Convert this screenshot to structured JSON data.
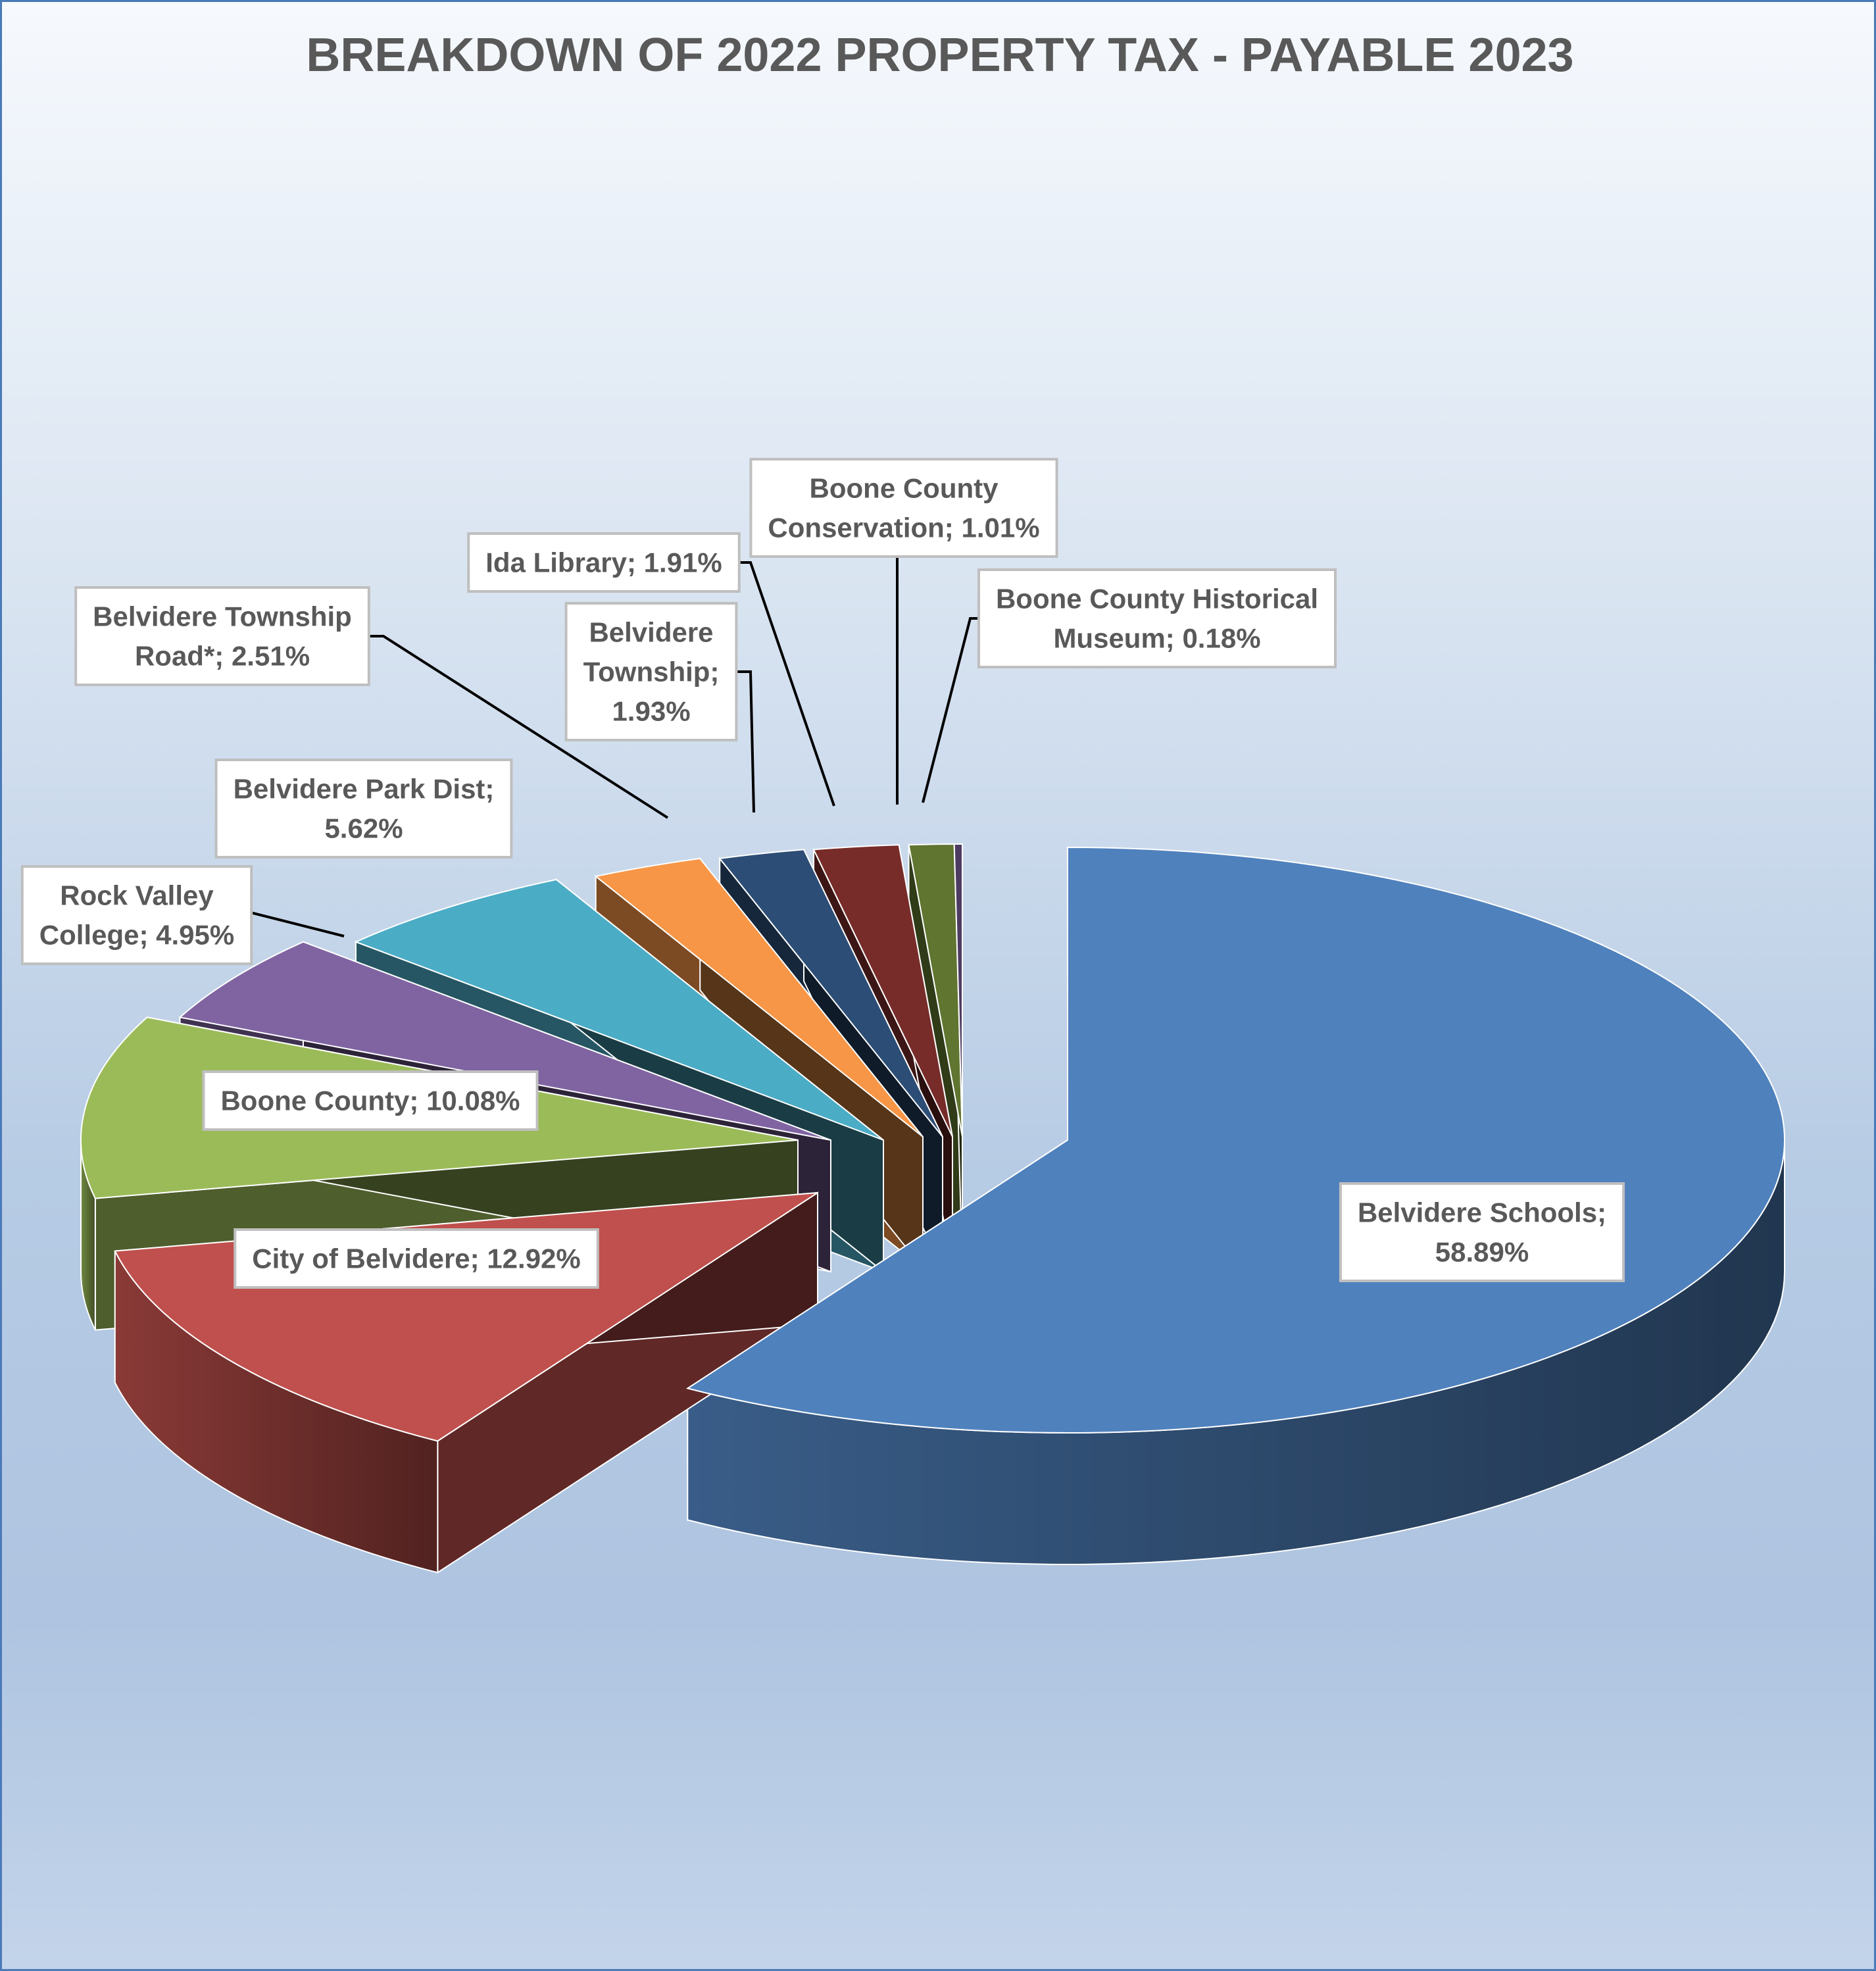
{
  "chart_data": {
    "type": "pie",
    "title": "BREAKDOWN OF 2022 PROPERTY TAX - PAYABLE 2023",
    "style": "3d-exploded",
    "label_format": "{name}; {value}%",
    "slices": [
      {
        "name": "Belvidere Schools",
        "value": 58.89,
        "color": "#4f81bd",
        "label_lines": [
          "Belvidere Schools;",
          "58.89%"
        ]
      },
      {
        "name": "City of Belvidere",
        "value": 12.92,
        "color": "#c0504d",
        "label_lines": [
          "City of Belvidere; 12.92%"
        ]
      },
      {
        "name": "Boone County",
        "value": 10.08,
        "color": "#9bbb59",
        "label_lines": [
          "Boone County; 10.08%"
        ]
      },
      {
        "name": "Rock Valley College",
        "value": 4.95,
        "color": "#8064a2",
        "label_lines": [
          "Rock Valley",
          "College; 4.95%"
        ]
      },
      {
        "name": "Belvidere Park Dist",
        "value": 5.62,
        "color": "#4bacc6",
        "label_lines": [
          "Belvidere Park Dist;",
          "5.62%"
        ]
      },
      {
        "name": "Belvidere Township Road*",
        "value": 2.51,
        "color": "#f79646",
        "label_lines": [
          "Belvidere Township",
          "Road*; 2.51%"
        ]
      },
      {
        "name": "Belvidere Township",
        "value": 1.93,
        "color": "#2c4d75",
        "label_lines": [
          "Belvidere",
          "Township;",
          "1.93%"
        ]
      },
      {
        "name": "Ida Library",
        "value": 1.91,
        "color": "#772c2a",
        "label_lines": [
          "Ida Library; 1.91%"
        ]
      },
      {
        "name": "Boone County Conservation",
        "value": 1.01,
        "color": "#5f7530",
        "label_lines": [
          "Boone County",
          "Conservation; 1.01%"
        ]
      },
      {
        "name": "Boone County Historical Museum",
        "value": 0.18,
        "color": "#4d3b62",
        "label_lines": [
          "Boone County Historical",
          "Museum; 0.18%"
        ]
      }
    ]
  }
}
